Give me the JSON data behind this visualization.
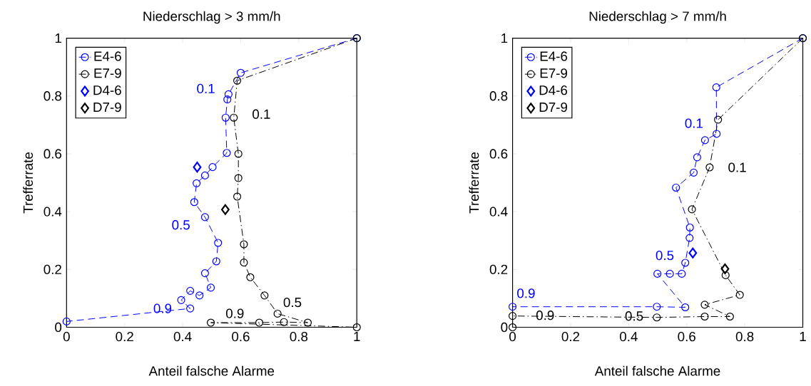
{
  "chart_data": [
    {
      "type": "line",
      "title": "Niederschlag > 3 mm/h",
      "xlabel": "Anteil falsche Alarme",
      "ylabel": "Trefferrate",
      "xlim": [
        0,
        1
      ],
      "ylim": [
        0,
        1
      ],
      "xticks": [
        0,
        0.2,
        0.4,
        0.6,
        0.8,
        1
      ],
      "yticks": [
        0,
        0.2,
        0.4,
        0.6,
        0.8,
        1
      ],
      "legend": "top left",
      "series": [
        {
          "name": "E4-6",
          "color": "#0000ff",
          "marker": "circle",
          "line_style": "dashed",
          "x": [
            1,
            0.6,
            0.558,
            0.554,
            0.548,
            0.552,
            0.503,
            0.477,
            0.448,
            0.44,
            0.477,
            0.522,
            0.516,
            0.477,
            0.497,
            0.458,
            0.426,
            0.395,
            0.426,
            0
          ],
          "values": [
            1,
            0.88,
            0.806,
            0.788,
            0.725,
            0.603,
            0.554,
            0.525,
            0.498,
            0.433,
            0.381,
            0.292,
            0.228,
            0.187,
            0.137,
            0.11,
            0.126,
            0.094,
            0.065,
            0.02
          ]
        },
        {
          "name": "E7-9",
          "color": "#000000",
          "marker": "circle",
          "line_style": "dashdot",
          "x": [
            1,
            0.588,
            0.576,
            0.592,
            0.592,
            0.588,
            0.611,
            0.611,
            0.633,
            0.682,
            0.727,
            0.831,
            0.749,
            0.664,
            0.497,
            1
          ],
          "values": [
            1,
            0.853,
            0.725,
            0.6,
            0.516,
            0.452,
            0.287,
            0.224,
            0.173,
            0.11,
            0.047,
            0.016,
            0.018,
            0.016,
            0.016,
            0
          ]
        },
        {
          "name": "D4-6",
          "type": "scatter",
          "color": "#0000ff",
          "marker": "diamond",
          "x": [
            0.45
          ],
          "values": [
            0.554
          ]
        },
        {
          "name": "D7-9",
          "type": "scatter",
          "color": "#000000",
          "marker": "diamond",
          "x": [
            0.547
          ],
          "values": [
            0.407
          ]
        }
      ],
      "annotations": [
        {
          "text": "0.1",
          "x": 0.558,
          "y": 0.806
        },
        {
          "text": "0.5",
          "x": 0.477,
          "y": 0.381
        },
        {
          "text": "0.9",
          "x": 0.426,
          "y": 0.065
        },
        {
          "text": "0.1",
          "x": 0.576,
          "y": 0.725
        },
        {
          "text": "0.5",
          "x": 0.727,
          "y": 0.047
        },
        {
          "text": "0.9",
          "x": 0.497,
          "y": 0.016
        }
      ]
    },
    {
      "type": "line",
      "title": "Niederschlag > 7 mm/h",
      "xlabel": "Anteil falsche Alarme",
      "ylabel": "Trefferrate",
      "xlim": [
        0,
        1
      ],
      "ylim": [
        0,
        1
      ],
      "xticks": [
        0,
        0.2,
        0.4,
        0.6,
        0.8,
        1
      ],
      "yticks": [
        0,
        0.2,
        0.4,
        0.6,
        0.8,
        1
      ],
      "legend": "top left",
      "series": [
        {
          "name": "E4-6",
          "color": "#0000ff",
          "marker": "circle",
          "line_style": "dashed",
          "x": [
            1,
            0.702,
            0.703,
            0.663,
            0.636,
            0.624,
            0.563,
            0.611,
            0.61,
            0.595,
            0.583,
            0.542,
            0.499,
            0.595,
            0.497,
            0
          ],
          "values": [
            1,
            0.83,
            0.669,
            0.647,
            0.588,
            0.535,
            0.483,
            0.345,
            0.309,
            0.223,
            0.185,
            0.185,
            0.185,
            0.069,
            0.071,
            0.071
          ]
        },
        {
          "name": "E7-9",
          "color": "#000000",
          "marker": "circle",
          "line_style": "dashdot",
          "x": [
            1,
            0.708,
            0.679,
            0.618,
            0.734,
            0.783,
            0.662,
            0.749,
            0.662,
            0.497,
            0,
            0
          ],
          "values": [
            1,
            0.718,
            0.553,
            0.408,
            0.18,
            0.112,
            0.078,
            0.037,
            0.037,
            0.034,
            0.039,
            0
          ]
        },
        {
          "name": "D4-6",
          "type": "scatter",
          "color": "#0000ff",
          "marker": "diamond",
          "x": [
            0.621
          ],
          "values": [
            0.257
          ]
        },
        {
          "name": "D7-9",
          "type": "scatter",
          "color": "#000000",
          "marker": "diamond",
          "x": [
            0.732
          ],
          "values": [
            0.202
          ]
        }
      ],
      "annotations": [
        {
          "text": "0.1",
          "x": 0.703,
          "y": 0.669
        },
        {
          "text": "0.5",
          "x": 0.583,
          "y": 0.185
        },
        {
          "text": "0.9",
          "x": 0,
          "y": 0.071
        },
        {
          "text": "0.1",
          "x": 0.679,
          "y": 0.553
        },
        {
          "text": "0.9",
          "x": 0,
          "y": 0.039
        },
        {
          "text": "0.5",
          "x": 0.497,
          "y": 0.034
        }
      ]
    }
  ]
}
